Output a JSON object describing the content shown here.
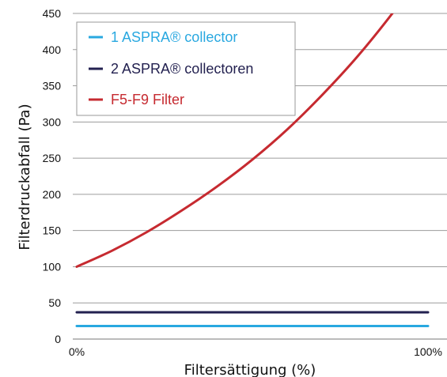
{
  "chart_data": {
    "type": "line",
    "xlabel": "Filtersättigung (%)",
    "ylabel": "Filterdruckabfall (Pa)",
    "ylim": [
      0,
      450
    ],
    "yticks": [
      "0",
      "50",
      "100",
      "150",
      "200",
      "250",
      "300",
      "350",
      "400",
      "450"
    ],
    "xlim": [
      0,
      100
    ],
    "xticks": [
      {
        "value": 0,
        "label": "0%"
      },
      {
        "value": 100,
        "label": "100%"
      }
    ],
    "grid": "horizontal",
    "legend": "top-left",
    "series": [
      {
        "name": "1 ASPRA® collector",
        "color": "#29a8e0",
        "x": [
          0,
          100
        ],
        "y": [
          18,
          18
        ]
      },
      {
        "name": "2 ASPRA® collectoren",
        "color": "#232150",
        "x": [
          0,
          100
        ],
        "y": [
          37,
          37
        ]
      },
      {
        "name": "F5-F9 Filter",
        "color": "#c62a30",
        "x": [
          0,
          10,
          20,
          30,
          40,
          50,
          60,
          70,
          80,
          90,
          100
        ],
        "y": [
          100,
          122,
          148,
          178,
          211,
          248,
          290,
          338,
          391,
          451,
          517
        ]
      }
    ]
  }
}
